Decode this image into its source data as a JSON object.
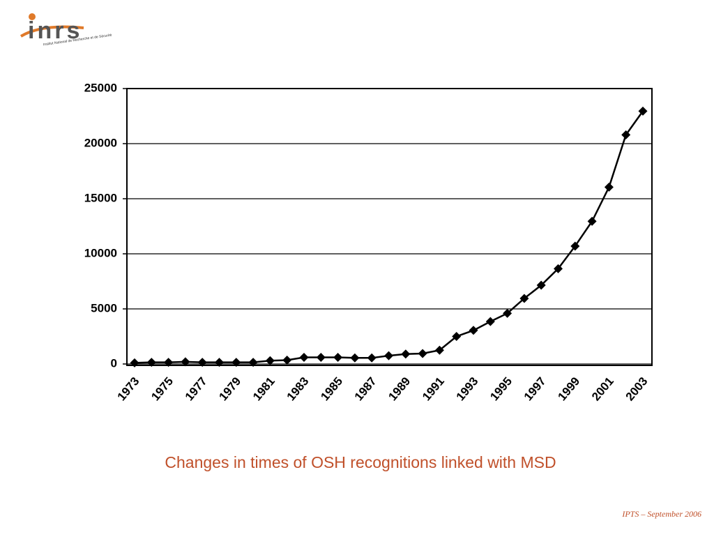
{
  "logo": {
    "name": "inrs",
    "subtitle": "Institut National de Recherche et de Sécurité"
  },
  "footer": "IPTS – September 2006",
  "chart_data": {
    "type": "line",
    "title": "Changes in times of OSH recognitions linked with MSD",
    "categories": [
      "1973",
      null,
      "1975",
      null,
      "1977",
      null,
      "1979",
      null,
      "1981",
      null,
      "1983",
      null,
      "1985",
      null,
      "1987",
      null,
      "1989",
      null,
      "1991",
      null,
      "1993",
      null,
      "1995",
      null,
      "1997",
      null,
      "1999",
      null,
      "2001",
      null,
      "2003"
    ],
    "values": [
      100,
      150,
      150,
      200,
      150,
      150,
      150,
      150,
      300,
      350,
      600,
      600,
      600,
      550,
      550,
      750,
      900,
      950,
      1250,
      2500,
      3050,
      3850,
      4600,
      5950,
      7150,
      8650,
      10700,
      12950,
      16050,
      20800,
      22950
    ],
    "color": "#000000",
    "ylim": [
      0,
      25000
    ],
    "yticks": [
      0,
      5000,
      10000,
      15000,
      20000,
      25000
    ],
    "grid": true
  }
}
